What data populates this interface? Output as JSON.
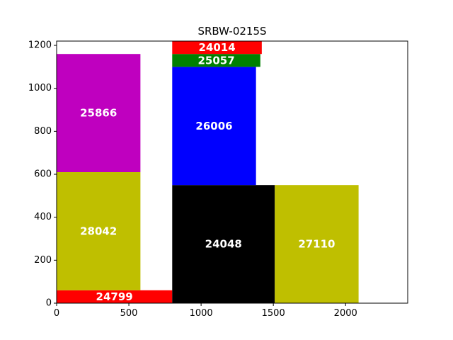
{
  "chart_data": {
    "type": "bar",
    "title": "SRBW-0215S",
    "xlim": [
      0,
      2430
    ],
    "ylim": [
      0,
      1220
    ],
    "x_ticks": [
      0,
      500,
      1000,
      1500,
      2000
    ],
    "y_ticks": [
      0,
      200,
      400,
      600,
      800,
      1000,
      1200
    ],
    "grid": false,
    "blocks": [
      {
        "label": "24799",
        "x0": 0,
        "x1": 800,
        "y0": 0,
        "y1": 60,
        "color": "#ff0000"
      },
      {
        "label": "28042",
        "x0": 0,
        "x1": 580,
        "y0": 60,
        "y1": 610,
        "color": "#bfbf00"
      },
      {
        "label": "25866",
        "x0": 0,
        "x1": 580,
        "y0": 610,
        "y1": 1160,
        "color": "#bf00bf"
      },
      {
        "label": "24048",
        "x0": 800,
        "x1": 1510,
        "y0": 0,
        "y1": 550,
        "color": "#000000"
      },
      {
        "label": "27110",
        "x0": 1510,
        "x1": 2090,
        "y0": 0,
        "y1": 550,
        "color": "#bfbf00"
      },
      {
        "label": "26006",
        "x0": 800,
        "x1": 1380,
        "y0": 550,
        "y1": 1100,
        "color": "#0000ff"
      },
      {
        "label": "25057",
        "x0": 800,
        "x1": 1410,
        "y0": 1100,
        "y1": 1160,
        "color": "#008000"
      },
      {
        "label": "24014",
        "x0": 800,
        "x1": 1420,
        "y0": 1160,
        "y1": 1220,
        "color": "#ff0000"
      }
    ]
  }
}
